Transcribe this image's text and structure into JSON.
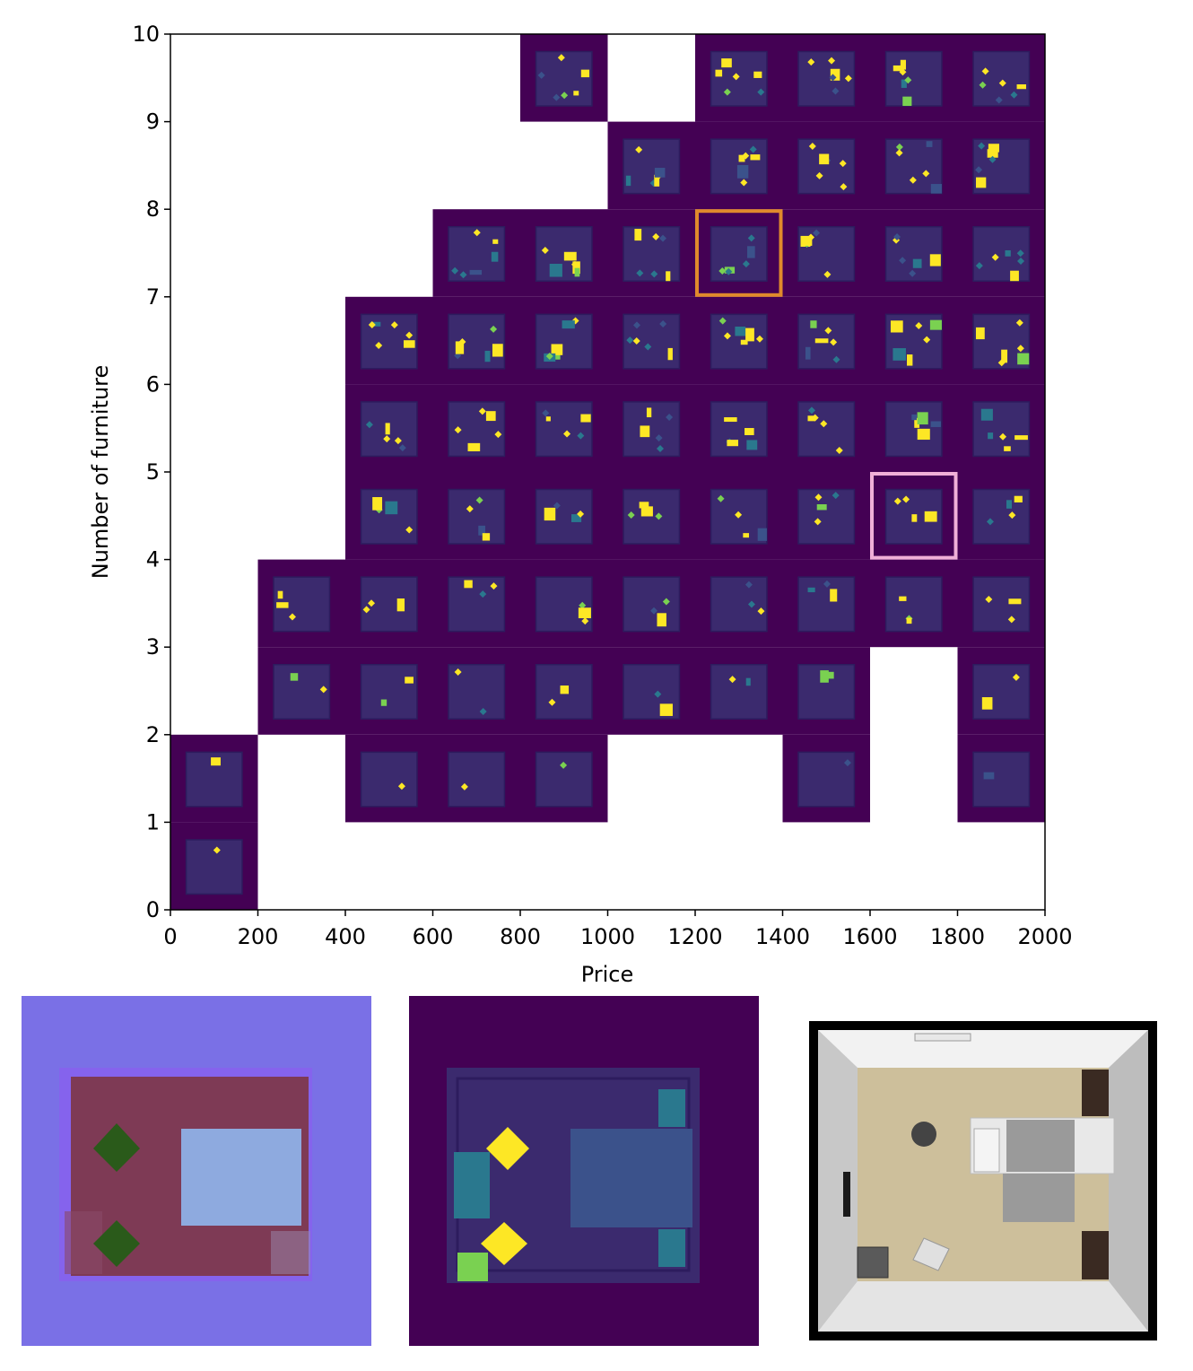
{
  "chart_data": {
    "type": "heatmap",
    "description_kind": "MAP-Elites style archive grid of room layout thumbnails",
    "title": "",
    "xlabel": "Price",
    "ylabel": "Number of furniture",
    "xlim": [
      0,
      2000
    ],
    "ylim": [
      0,
      10
    ],
    "x_ticks": [
      0,
      200,
      400,
      600,
      800,
      1000,
      1200,
      1400,
      1600,
      1800,
      2000
    ],
    "y_ticks": [
      0,
      1,
      2,
      3,
      4,
      5,
      6,
      7,
      8,
      9,
      10
    ],
    "cell_size": {
      "price": 200,
      "furniture": 1
    },
    "filled_cells_by_row": [
      {
        "furniture": 0,
        "price_bins": [
          0
        ]
      },
      {
        "furniture": 1,
        "price_bins": [
          0,
          400,
          600,
          800,
          1400,
          1800
        ]
      },
      {
        "furniture": 2,
        "price_bins": [
          200,
          400,
          600,
          800,
          1000,
          1200,
          1400,
          1800
        ]
      },
      {
        "furniture": 3,
        "price_bins": [
          200,
          400,
          600,
          800,
          1000,
          1200,
          1400,
          1600,
          1800
        ]
      },
      {
        "furniture": 4,
        "price_bins": [
          400,
          600,
          800,
          1000,
          1200,
          1400,
          1600,
          1800
        ]
      },
      {
        "furniture": 5,
        "price_bins": [
          400,
          600,
          800,
          1000,
          1200,
          1400,
          1600,
          1800
        ]
      },
      {
        "furniture": 6,
        "price_bins": [
          400,
          600,
          800,
          1000,
          1200,
          1400,
          1600,
          1800
        ]
      },
      {
        "furniture": 7,
        "price_bins": [
          600,
          800,
          1000,
          1200,
          1400,
          1600,
          1800
        ]
      },
      {
        "furniture": 8,
        "price_bins": [
          1000,
          1200,
          1400,
          1600,
          1800
        ]
      },
      {
        "furniture": 9,
        "price_bins": [
          800,
          1200,
          1400,
          1600,
          1800
        ]
      }
    ],
    "highlights": [
      {
        "color": "#e08a2c",
        "price": 1200,
        "furniture": 7
      },
      {
        "color": "#f0b0d8",
        "price": 1600,
        "furniture": 4
      }
    ],
    "grid": false,
    "colormap": "viridis"
  },
  "colors": {
    "background_cell": "#440154",
    "room_floor": "#3b2a6e",
    "yellow": "#fde725",
    "green": "#7ad151",
    "teal": "#2a788e",
    "blue": "#3b528b",
    "normal_bg": "#7a70e6",
    "normal_floor": "#7e3a55",
    "normal_bed": "#8eaadf",
    "normal_plant": "#2a5a1a"
  },
  "panels": {
    "normal_map": "top-down normal map of highlighted room",
    "semantic_map": "top-down semantic map of highlighted room",
    "render": "3D top-down render of highlighted room"
  }
}
